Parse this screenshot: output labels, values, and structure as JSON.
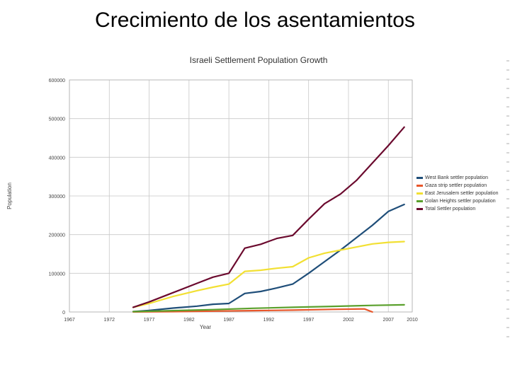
{
  "slide": {
    "title": "Crecimiento de los asentamientos"
  },
  "chart_data": {
    "type": "line",
    "title": "Israeli Settlement Population Growth",
    "xlabel": "Year",
    "ylabel": "Population",
    "xlim": [
      1967,
      2010
    ],
    "ylim": [
      0,
      600000
    ],
    "xticks": [
      "1967",
      "1972",
      "1977",
      "1982",
      "1987",
      "1992",
      "1997",
      "2002",
      "2007",
      "2010"
    ],
    "xtick_values": [
      1967,
      1972,
      1977,
      1982,
      1987,
      1992,
      1997,
      2002,
      2007,
      2010
    ],
    "yticks": [
      "0",
      "100000",
      "200000",
      "300000",
      "400000",
      "500000",
      "600000"
    ],
    "ytick_values": [
      0,
      100000,
      200000,
      300000,
      400000,
      500000,
      600000
    ],
    "grid": true,
    "legend_position": "right",
    "series": [
      {
        "name": "West Bank settler population",
        "color": "#1f4e79",
        "points": [
          [
            1975,
            1000
          ],
          [
            1977,
            4000
          ],
          [
            1980,
            10000
          ],
          [
            1983,
            15000
          ],
          [
            1985,
            20000
          ],
          [
            1987,
            22000
          ],
          [
            1989,
            48000
          ],
          [
            1991,
            53000
          ],
          [
            1993,
            62000
          ],
          [
            1995,
            72000
          ],
          [
            1997,
            100000
          ],
          [
            1999,
            130000
          ],
          [
            2001,
            160000
          ],
          [
            2003,
            192000
          ],
          [
            2005,
            224000
          ],
          [
            2007,
            260000
          ],
          [
            2009,
            278000
          ]
        ]
      },
      {
        "name": "Gaza strip settler population",
        "color": "#e8562a",
        "points": [
          [
            1975,
            100
          ],
          [
            1980,
            900
          ],
          [
            1985,
            2200
          ],
          [
            1990,
            3400
          ],
          [
            1995,
            4800
          ],
          [
            2000,
            6700
          ],
          [
            2004,
            7800
          ],
          [
            2005,
            0
          ]
        ]
      },
      {
        "name": "East Jerusalem settler population",
        "color": "#f2e033",
        "points": [
          [
            1975,
            12000
          ],
          [
            1977,
            22000
          ],
          [
            1980,
            40000
          ],
          [
            1983,
            55000
          ],
          [
            1985,
            64000
          ],
          [
            1987,
            72000
          ],
          [
            1989,
            105000
          ],
          [
            1991,
            108000
          ],
          [
            1993,
            113000
          ],
          [
            1995,
            117000
          ],
          [
            1997,
            140000
          ],
          [
            1999,
            152000
          ],
          [
            2001,
            160000
          ],
          [
            2003,
            168000
          ],
          [
            2005,
            176000
          ],
          [
            2007,
            180000
          ],
          [
            2009,
            182000
          ]
        ]
      },
      {
        "name": "Golan Heights settler population",
        "color": "#5aa02c",
        "points": [
          [
            1975,
            1000
          ],
          [
            1980,
            3500
          ],
          [
            1985,
            6000
          ],
          [
            1990,
            9500
          ],
          [
            1995,
            12000
          ],
          [
            2000,
            14500
          ],
          [
            2005,
            17000
          ],
          [
            2009,
            18500
          ]
        ]
      },
      {
        "name": "Total Settler population",
        "color": "#6b0a2e",
        "points": [
          [
            1975,
            12000
          ],
          [
            1977,
            26000
          ],
          [
            1980,
            50000
          ],
          [
            1983,
            74000
          ],
          [
            1985,
            90000
          ],
          [
            1987,
            100000
          ],
          [
            1989,
            165000
          ],
          [
            1991,
            175000
          ],
          [
            1993,
            190000
          ],
          [
            1995,
            198000
          ],
          [
            1997,
            240000
          ],
          [
            1999,
            280000
          ],
          [
            2001,
            305000
          ],
          [
            2003,
            340000
          ],
          [
            2005,
            385000
          ],
          [
            2007,
            430000
          ],
          [
            2009,
            478000
          ]
        ]
      }
    ]
  }
}
